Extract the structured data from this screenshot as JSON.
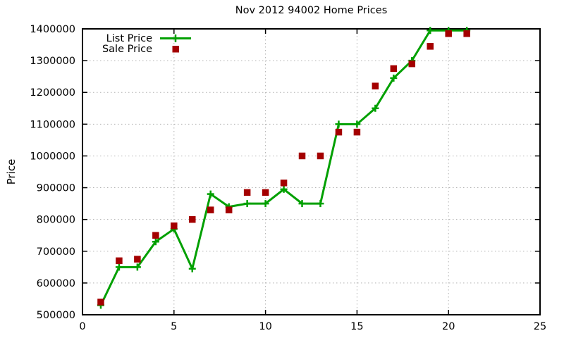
{
  "title": "Nov 2012 94002 Home Prices",
  "colors": {
    "list_price": "#00a000",
    "sale_price": "#a40000",
    "grid": "#b0b0b0",
    "axis": "#000000",
    "background": "#ffffff"
  },
  "chart_data": {
    "type": "line",
    "title": "Nov 2012 94002 Home Prices",
    "xlabel": "",
    "ylabel": "Price",
    "xlim": [
      0,
      25
    ],
    "ylim": [
      500000,
      1400000
    ],
    "x_ticks": [
      0,
      5,
      10,
      15,
      20,
      25
    ],
    "y_ticks": [
      500000,
      600000,
      700000,
      800000,
      900000,
      1000000,
      1100000,
      1200000,
      1300000,
      1400000
    ],
    "grid": true,
    "legend_position": "top-left-inside",
    "x": [
      1,
      2,
      3,
      4,
      5,
      6,
      7,
      8,
      9,
      10,
      11,
      12,
      13,
      14,
      15,
      16,
      17,
      18,
      19,
      20,
      21
    ],
    "series": [
      {
        "name": "List Price",
        "style": "line-with-plus-markers",
        "color": "#00a000",
        "values": [
          530000,
          650000,
          650000,
          730000,
          770000,
          645000,
          880000,
          840000,
          850000,
          850000,
          895000,
          850000,
          850000,
          1100000,
          1100000,
          1150000,
          1245000,
          1300000,
          1395000,
          1395000,
          1395000
        ]
      },
      {
        "name": "Sale Price",
        "style": "filled-square-points",
        "color": "#a40000",
        "values": [
          540000,
          670000,
          675000,
          750000,
          780000,
          800000,
          830000,
          830000,
          885000,
          885000,
          915000,
          1000000,
          1000000,
          1075000,
          1075000,
          1220000,
          1275000,
          1290000,
          1345000,
          1385000,
          1385000
        ]
      }
    ]
  }
}
